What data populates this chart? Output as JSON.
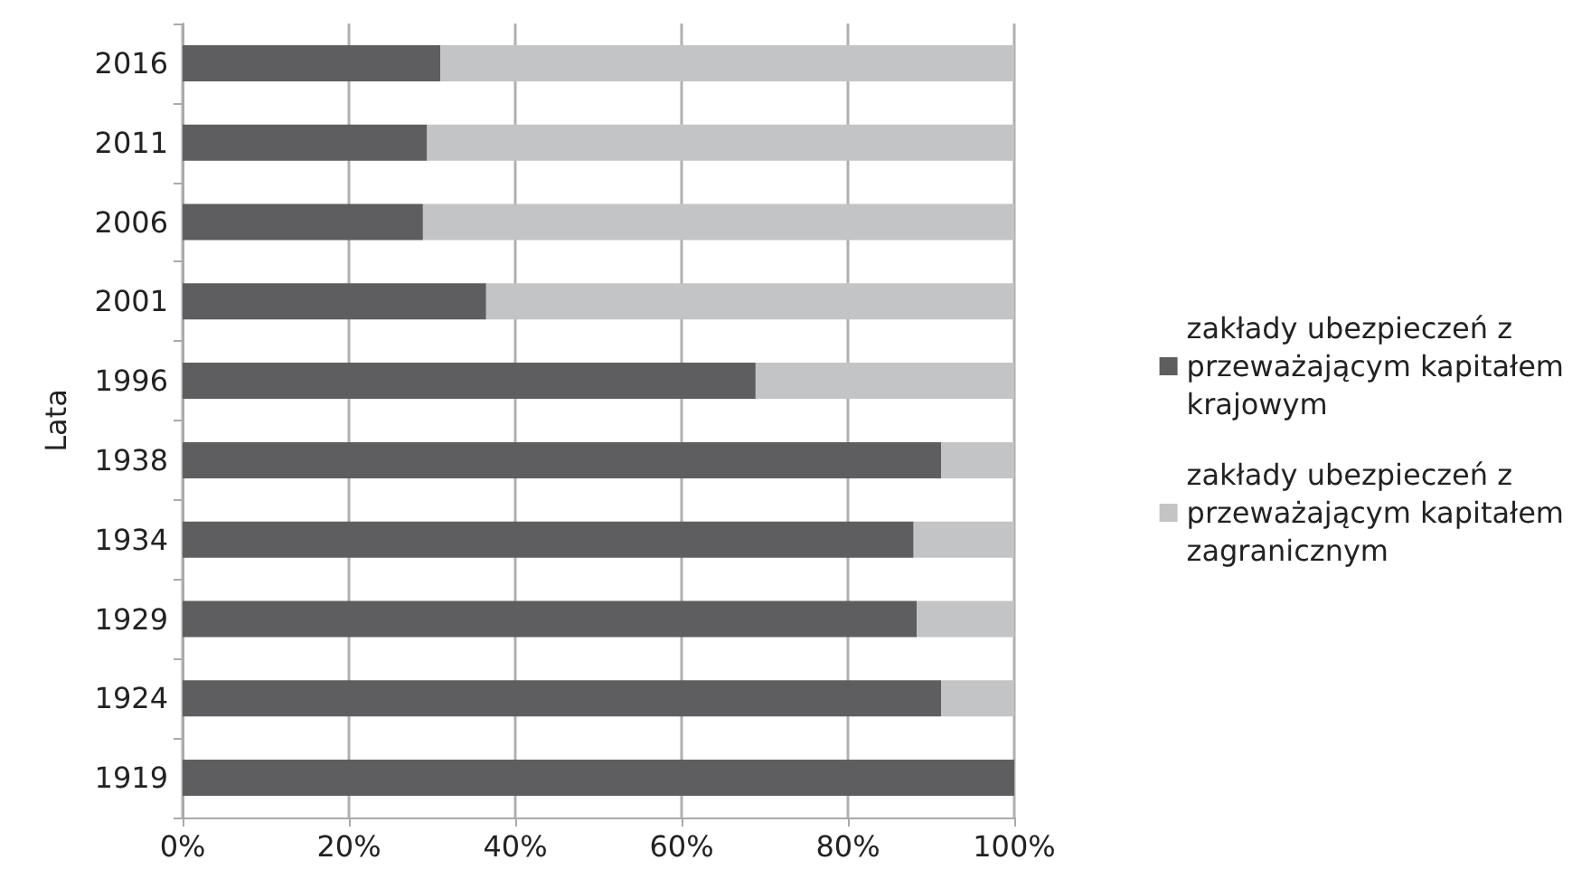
{
  "chart_data": {
    "type": "bar",
    "orientation": "horizontal",
    "stacked": true,
    "ylabel": "Lata",
    "categories": [
      "2016",
      "2011",
      "2006",
      "2001",
      "1996",
      "1938",
      "1934",
      "1929",
      "1924",
      "1919"
    ],
    "series": [
      {
        "name": "zakłady ubezpieczeń z przeważającym kapitałem krajowym",
        "color": "#5e5e60",
        "values": [
          31.0,
          29.4,
          28.9,
          36.5,
          68.9,
          91.2,
          87.9,
          88.3,
          91.2,
          100
        ]
      },
      {
        "name": "zakłady ubezpieczeń z przeważającym kapitałem zagranicznym",
        "color": "#c3c4c6",
        "values": [
          69.0,
          70.6,
          71.1,
          63.5,
          31.1,
          8.8,
          12.1,
          11.7,
          8.8,
          0
        ]
      }
    ],
    "xlim": [
      0,
      100
    ],
    "xticks": [
      {
        "value": 0,
        "label": "0%"
      },
      {
        "value": 20,
        "label": "20%"
      },
      {
        "value": 40,
        "label": "40%"
      },
      {
        "value": 60,
        "label": "60%"
      },
      {
        "value": 80,
        "label": "80%"
      },
      {
        "value": 100,
        "label": "100%"
      }
    ],
    "grid": "x",
    "legend": "right"
  }
}
